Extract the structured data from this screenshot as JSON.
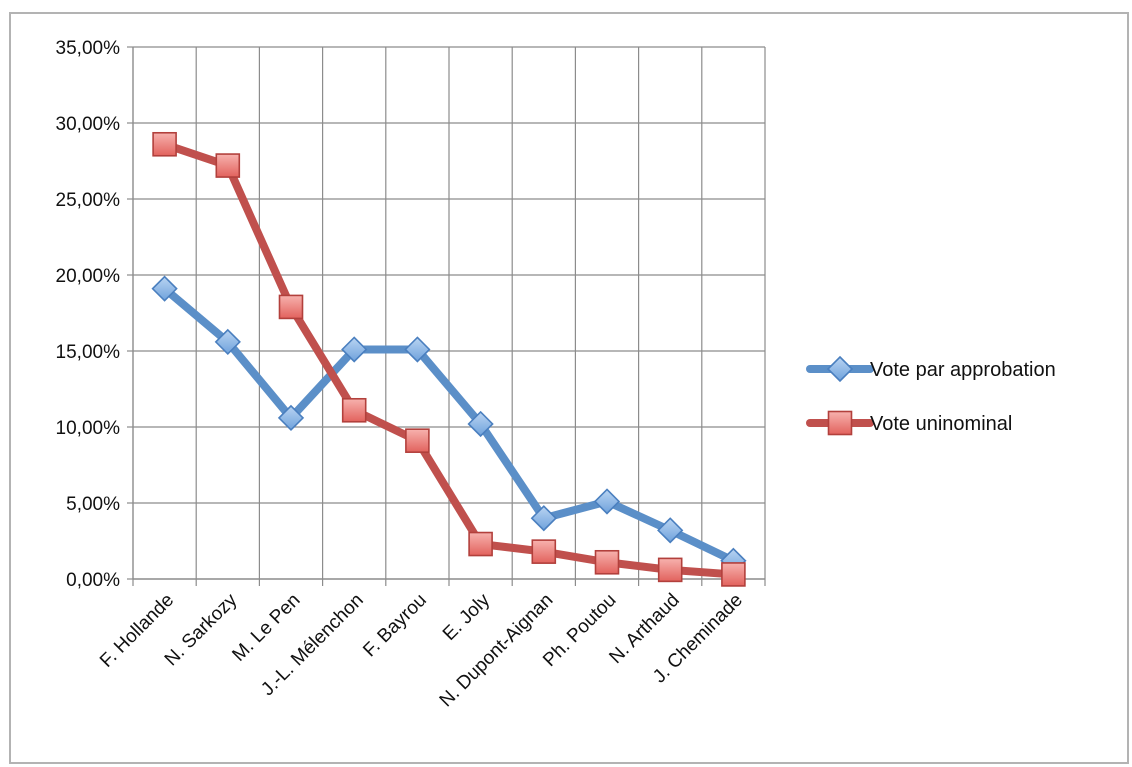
{
  "chart_data": {
    "type": "line",
    "categories": [
      "F. Hollande",
      "N. Sarkozy",
      "M. Le Pen",
      "J.-L. Mélenchon",
      "F. Bayrou",
      "E. Joly",
      "N. Dupont-Aignan",
      "Ph. Poutou",
      "N. Arthaud",
      "J. Cheminade"
    ],
    "series": [
      {
        "name": "Vote par approbation",
        "values": [
          19.1,
          15.6,
          10.6,
          15.1,
          15.1,
          10.2,
          4.0,
          5.1,
          3.2,
          1.2
        ],
        "color": "#5b8fc8",
        "marker": "diamond"
      },
      {
        "name": "Vote uninominal",
        "values": [
          28.6,
          27.2,
          17.9,
          11.1,
          9.1,
          2.3,
          1.8,
          1.1,
          0.6,
          0.3
        ],
        "color": "#c0504d",
        "marker": "square"
      }
    ],
    "ylim": [
      0,
      35
    ],
    "yticks": [
      "0,00%",
      "5,00%",
      "10,00%",
      "15,00%",
      "20,00%",
      "25,00%",
      "30,00%",
      "35,00%"
    ],
    "grid": true,
    "legend_position": "right",
    "title": "",
    "xlabel": "",
    "ylabel": ""
  }
}
